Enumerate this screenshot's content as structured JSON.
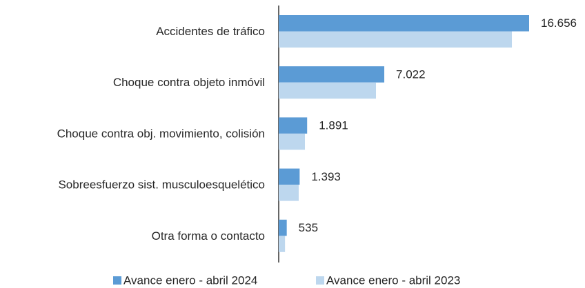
{
  "chart_data": {
    "type": "hbar",
    "categories": [
      "Accidentes de tráfico",
      "Choque contra objeto inmóvil",
      "Choque contra obj. movimiento, colisión",
      "Sobreesfuerzo sist. musculoesquelético",
      "Otra forma o contacto"
    ],
    "series": [
      {
        "name": "Avance enero - abril 2024",
        "color": "#5b9bd5",
        "values": [
          16656,
          7022,
          1891,
          1393,
          535
        ],
        "value_labels": [
          "16.656",
          "7.022",
          "1.891",
          "1.393",
          "535"
        ]
      },
      {
        "name": "Avance enero - abril 2023",
        "color": "#bdd7ee",
        "values": [
          15510,
          6470,
          1744,
          1330,
          420
        ]
      }
    ],
    "legend": "bottom"
  }
}
